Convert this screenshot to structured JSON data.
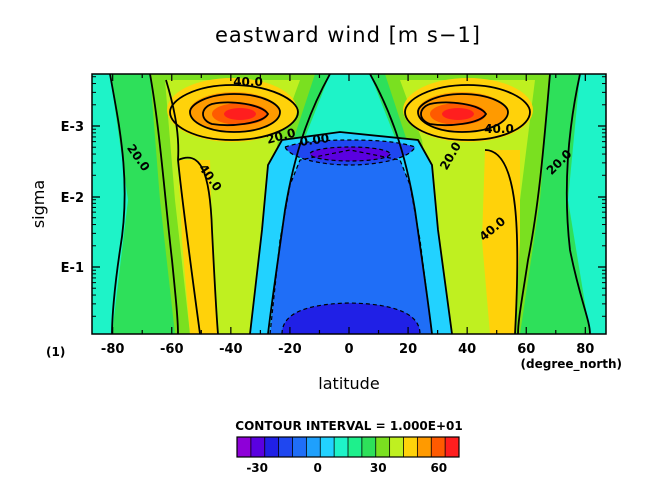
{
  "chart_data": {
    "type": "contour",
    "title": "eastward wind [m s−1]",
    "xlabel": "latitude",
    "ylabel": "sigma",
    "x_unit": "(degree_north)",
    "y_unit": "(1)",
    "x_range": [
      -87,
      87
    ],
    "x_ticks": [
      -80,
      -60,
      -40,
      -20,
      0,
      20,
      40,
      60,
      80
    ],
    "y_scale": "log",
    "y_ticks": [
      "E-3",
      "E-2",
      "E-1"
    ],
    "contour_labels": [
      "40.0",
      "40.0",
      "20.0",
      "0.00",
      "20.0",
      "40.0",
      "20.0",
      "40.0",
      "20.0"
    ],
    "contour_interval_text": "CONTOUR INTERVAL = 1.000E+01",
    "colorbar": {
      "tick_labels": [
        "-30",
        "0",
        "30",
        "60"
      ],
      "colors": [
        "#8e00d8",
        "#5a00e0",
        "#2020e6",
        "#1f47f0",
        "#1f6ef7",
        "#1fa0fc",
        "#22d2ff",
        "#1ef3c8",
        "#1ef08c",
        "#2ee05a",
        "#7ae020",
        "#bff020",
        "#ffd20a",
        "#ff9a00",
        "#ff5a00",
        "#ff1e1e"
      ]
    }
  }
}
